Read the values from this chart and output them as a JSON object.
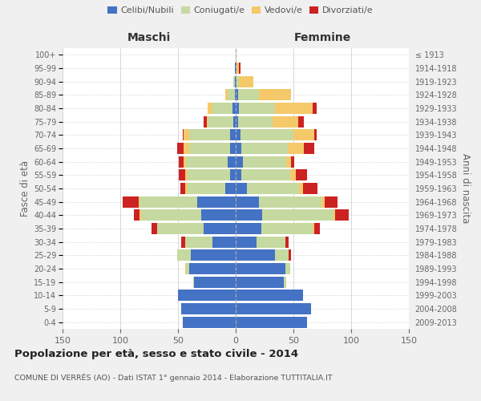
{
  "age_groups": [
    "0-4",
    "5-9",
    "10-14",
    "15-19",
    "20-24",
    "25-29",
    "30-34",
    "35-39",
    "40-44",
    "45-49",
    "50-54",
    "55-59",
    "60-64",
    "65-69",
    "70-74",
    "75-79",
    "80-84",
    "85-89",
    "90-94",
    "95-99",
    "100+"
  ],
  "birth_years": [
    "2009-2013",
    "2004-2008",
    "1999-2003",
    "1994-1998",
    "1989-1993",
    "1984-1988",
    "1979-1983",
    "1974-1978",
    "1969-1973",
    "1964-1968",
    "1959-1963",
    "1954-1958",
    "1949-1953",
    "1944-1948",
    "1939-1943",
    "1934-1938",
    "1929-1933",
    "1924-1928",
    "1919-1923",
    "1914-1918",
    "≤ 1913"
  ],
  "males": {
    "celibi": [
      46,
      47,
      50,
      36,
      40,
      39,
      20,
      28,
      30,
      33,
      9,
      5,
      7,
      5,
      5,
      2,
      3,
      1,
      1,
      1,
      0
    ],
    "coniugati": [
      0,
      0,
      0,
      1,
      3,
      12,
      24,
      40,
      52,
      50,
      33,
      37,
      36,
      35,
      35,
      22,
      17,
      6,
      1,
      0,
      0
    ],
    "vedovi": [
      0,
      0,
      0,
      0,
      1,
      0,
      0,
      0,
      1,
      1,
      2,
      2,
      2,
      5,
      5,
      1,
      4,
      2,
      0,
      0,
      0
    ],
    "divorziati": [
      0,
      0,
      0,
      0,
      0,
      0,
      3,
      5,
      5,
      14,
      4,
      5,
      4,
      6,
      1,
      3,
      0,
      0,
      0,
      0,
      0
    ]
  },
  "females": {
    "nubili": [
      62,
      65,
      58,
      42,
      43,
      34,
      18,
      22,
      23,
      20,
      10,
      5,
      6,
      5,
      4,
      2,
      3,
      2,
      1,
      1,
      0
    ],
    "coniugate": [
      0,
      0,
      0,
      2,
      4,
      12,
      25,
      45,
      62,
      54,
      45,
      42,
      38,
      40,
      46,
      30,
      31,
      18,
      2,
      0,
      0
    ],
    "vedove": [
      0,
      0,
      0,
      0,
      0,
      0,
      0,
      1,
      1,
      3,
      3,
      5,
      4,
      14,
      18,
      22,
      33,
      28,
      12,
      2,
      1
    ],
    "divorziate": [
      0,
      0,
      0,
      0,
      0,
      2,
      3,
      5,
      12,
      11,
      13,
      10,
      3,
      9,
      2,
      5,
      3,
      0,
      0,
      1,
      0
    ]
  },
  "colors": {
    "celibi": "#4472c4",
    "coniugati": "#c5d9a0",
    "vedovi": "#f5c96a",
    "divorziati": "#cc2222"
  },
  "title": "Popolazione per età, sesso e stato civile - 2014",
  "subtitle": "COMUNE DI VERRÈS (AO) - Dati ISTAT 1° gennaio 2014 - Elaborazione TUTTITALIA.IT",
  "xlabel_left": "Maschi",
  "xlabel_right": "Femmine",
  "ylabel_left": "Fasce di età",
  "ylabel_right": "Anni di nascita",
  "xlim": 150,
  "bg_color": "#f0f0f0",
  "plot_bg": "#ffffff",
  "grid_color": "#cccccc"
}
